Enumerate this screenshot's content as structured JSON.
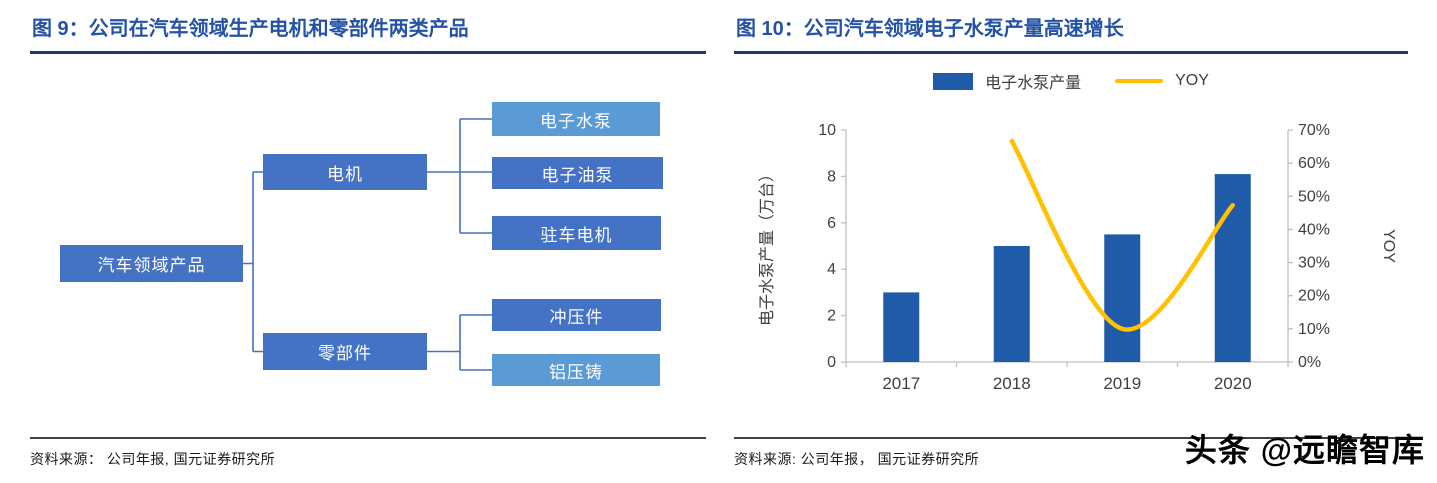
{
  "watermark": "头条 @远瞻智库",
  "fig9": {
    "title": "图 9：公司在汽车领域生产电机和零部件两类产品",
    "source": "资料来源：  公司年报, 国元证券研究所",
    "nodes": {
      "root": "汽车领域产品",
      "motor": "电机",
      "parts": "零部件",
      "water_pump": "电子水泵",
      "oil_pump": "电子油泵",
      "parking_motor": "驻车电机",
      "stamping": "冲压件",
      "aluminum_die_cast": "铝压铸"
    },
    "colors": {
      "box_primary": "#4472C4",
      "box_light": "#5B9BD5",
      "connector": "#4472C4"
    }
  },
  "fig10": {
    "title": "图 10：公司汽车领域电子水泵产量高速增长",
    "source": "资料来源: 公司年报，  国元证券研究所"
  },
  "chart_data": [
    {
      "type": "bar",
      "title": "公司汽车领域电子水泵产量高速增长",
      "categories": [
        "2017",
        "2018",
        "2019",
        "2020"
      ],
      "series": [
        {
          "name": "电子水泵产量",
          "type": "bar",
          "axis": "left",
          "color": "#1F5BA8",
          "values": [
            3.0,
            5.0,
            5.5,
            8.1
          ]
        },
        {
          "name": "YOY",
          "type": "line",
          "axis": "right",
          "color": "#FFC000",
          "values": [
            null,
            66.7,
            10.0,
            47.3
          ]
        }
      ],
      "left_axis": {
        "label": "电子水泵产量（万台）",
        "min": 0,
        "max": 10,
        "step": 2
      },
      "right_axis": {
        "label": "YOY",
        "min": 0,
        "max": 70,
        "step": 10,
        "suffix": "%"
      },
      "legend_position": "top",
      "grid": false,
      "axis_color": "#BFBFBF",
      "text_color": "#404040"
    }
  ]
}
